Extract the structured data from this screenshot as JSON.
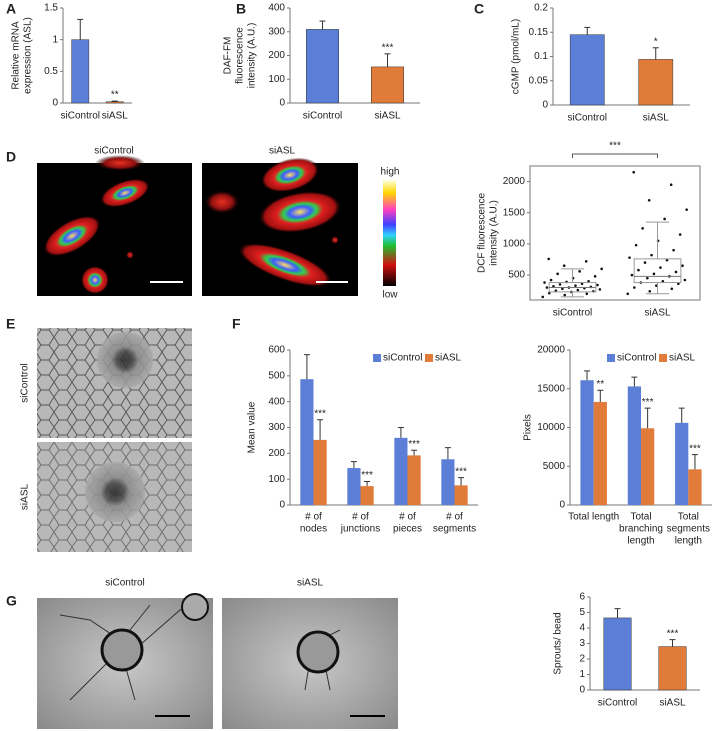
{
  "panels": [
    "A",
    "B",
    "C",
    "D",
    "E",
    "F",
    "G"
  ],
  "images": {
    "D": {
      "labels": [
        "siControl",
        "siASL"
      ],
      "scale": [
        "high",
        "low"
      ]
    },
    "E": {
      "labels": [
        "siControl",
        "siASL"
      ]
    },
    "G": {
      "labels": [
        "siControl",
        "siASL"
      ]
    }
  },
  "chart_data": [
    {
      "type": "bar",
      "ylabel": [
        "Relative mRNA",
        "expression (ASL)"
      ],
      "categories": [
        "siControl",
        "siASL"
      ],
      "values": [
        1,
        0.02
      ],
      "errors": [
        0.32,
        0.01
      ],
      "colors": [
        "#5b7fd6",
        "#e07b39"
      ],
      "annotations": [
        null,
        "**"
      ],
      "ylim": [
        0,
        1.5
      ],
      "yticks": [
        0,
        0.5,
        1,
        1.5
      ]
    },
    {
      "type": "bar",
      "ylabel": [
        "DAF-FM",
        "fluorescence",
        "intensity (A.U.)"
      ],
      "categories": [
        "siControl",
        "siASL"
      ],
      "values": [
        310,
        152
      ],
      "errors": [
        35,
        55
      ],
      "colors": [
        "#5b7fd6",
        "#e07b39"
      ],
      "annotations": [
        null,
        "***"
      ],
      "ylim": [
        0,
        400
      ],
      "yticks": [
        0,
        100,
        200,
        300,
        400
      ]
    },
    {
      "type": "bar",
      "ylabel": [
        "cGMP (pmol/mL)"
      ],
      "categories": [
        "siControl",
        "siASL"
      ],
      "values": [
        0.145,
        0.094
      ],
      "errors": [
        0.015,
        0.024
      ],
      "colors": [
        "#5b7fd6",
        "#e07b39"
      ],
      "annotations": [
        null,
        "*"
      ],
      "ylim": [
        0,
        0.2
      ],
      "yticks": [
        0,
        0.05,
        0.1,
        0.15,
        0.2
      ]
    },
    {
      "type": "box",
      "ylabel": [
        "DCF  fluorescence",
        "intensity (A.U.)"
      ],
      "categories": [
        "siControl",
        "siASL"
      ],
      "boxes": [
        {
          "whislo": 150,
          "q1": 230,
          "med": 300,
          "q3": 380,
          "whishi": 600,
          "points": [
            150,
            180,
            200,
            210,
            230,
            240,
            250,
            260,
            270,
            280,
            290,
            300,
            300,
            310,
            320,
            330,
            340,
            350,
            360,
            380,
            390,
            400,
            420,
            450,
            480,
            520,
            560,
            600,
            650,
            720,
            760
          ]
        },
        {
          "whislo": 200,
          "q1": 380,
          "med": 480,
          "q3": 760,
          "whishi": 1350,
          "points": [
            200,
            240,
            280,
            300,
            330,
            360,
            380,
            400,
            420,
            450,
            480,
            500,
            520,
            550,
            580,
            620,
            650,
            700,
            740,
            780,
            820,
            900,
            980,
            1050,
            1150,
            1250,
            1400,
            1550,
            1700,
            1950,
            2150
          ]
        }
      ],
      "bracket": "***",
      "ylim": [
        100,
        2250
      ],
      "yticks": [
        500,
        1000,
        1500,
        2000
      ]
    },
    {
      "type": "grouped",
      "ylabel": [
        "Mean value"
      ],
      "categories": [
        [
          "# of",
          "nodes"
        ],
        [
          "# of",
          "junctions"
        ],
        [
          "# of",
          "pieces"
        ],
        [
          "# of",
          "segments"
        ]
      ],
      "series": [
        {
          "name": "siControl",
          "color": "#5b7fd6",
          "values": [
            487,
            143,
            260,
            177
          ],
          "errors": [
            95,
            25,
            40,
            45
          ]
        },
        {
          "name": "siASL",
          "color": "#e07b39",
          "values": [
            252,
            73,
            192,
            76
          ],
          "errors": [
            78,
            18,
            20,
            30
          ],
          "annotations": [
            "***",
            "***",
            "***",
            "***"
          ]
        }
      ],
      "legend": "top-right",
      "ylim": [
        0,
        600
      ],
      "yticks": [
        0,
        100,
        200,
        300,
        400,
        500,
        600
      ]
    },
    {
      "type": "grouped",
      "ylabel": [
        "Pixels"
      ],
      "categories": [
        [
          "Total length"
        ],
        [
          "Total",
          "branching",
          "length"
        ],
        [
          "Total",
          "segments",
          "length"
        ]
      ],
      "series": [
        {
          "name": "siControl",
          "color": "#5b7fd6",
          "values": [
            16100,
            15300,
            10600
          ],
          "errors": [
            1200,
            1200,
            1900
          ]
        },
        {
          "name": "siASL",
          "color": "#e07b39",
          "values": [
            13300,
            9900,
            4600
          ],
          "errors": [
            1500,
            2600,
            1900
          ],
          "annotations": [
            "**",
            "***",
            "***"
          ]
        }
      ],
      "legend": "top-right",
      "ylim": [
        0,
        20000
      ],
      "yticks": [
        0,
        5000,
        10000,
        15000,
        20000
      ]
    },
    {
      "type": "bar",
      "ylabel": [
        "Sprouts/ bead"
      ],
      "categories": [
        "siControl",
        "siASL"
      ],
      "values": [
        4.65,
        2.8
      ],
      "errors": [
        0.6,
        0.45
      ],
      "colors": [
        "#5b7fd6",
        "#e07b39"
      ],
      "annotations": [
        null,
        "***"
      ],
      "ylim": [
        0,
        6
      ],
      "yticks": [
        0,
        1,
        2,
        3,
        4,
        5,
        6
      ]
    }
  ]
}
